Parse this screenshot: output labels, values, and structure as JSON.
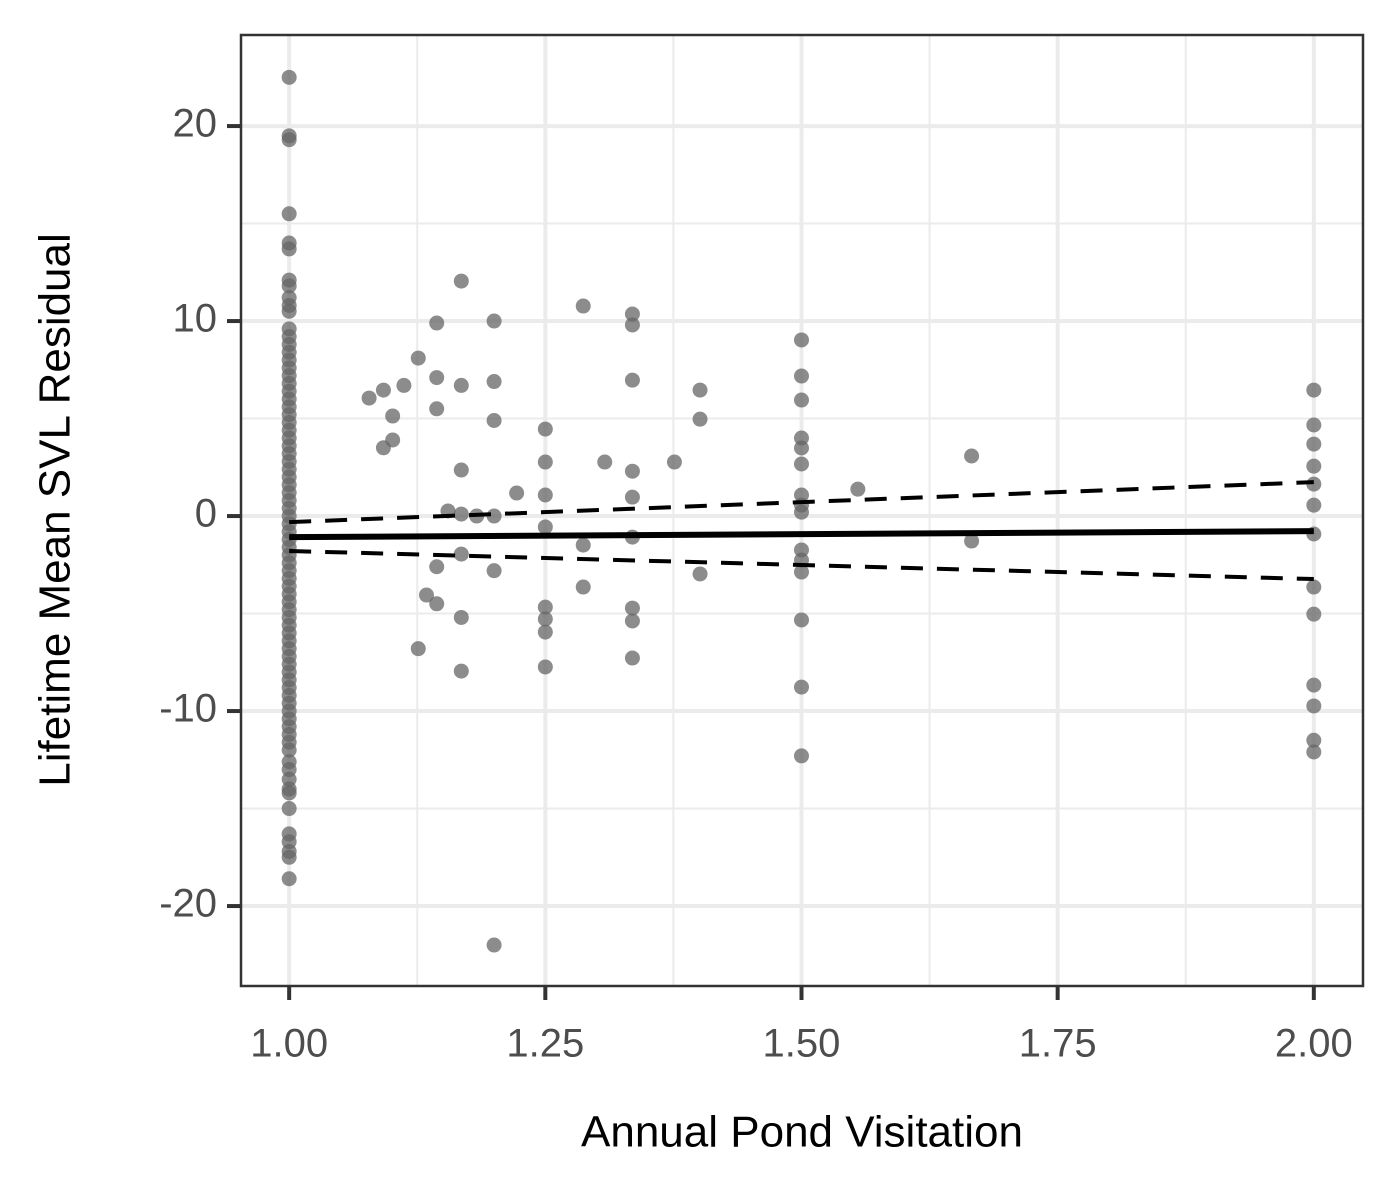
{
  "chart_data": {
    "type": "scatter",
    "x_label": "Annual Pond Visitation",
    "y_label": "Lifetime Mean SVL Residual",
    "xlim": [
      0.953,
      2.048
    ],
    "ylim": [
      -24.1,
      24.67
    ],
    "xticks": [
      {
        "value": 1,
        "label": "1.00"
      },
      {
        "value": 1.25,
        "label": "1.25"
      },
      {
        "value": 1.5,
        "label": "1.50"
      },
      {
        "value": 1.75,
        "label": "1.75"
      },
      {
        "value": 2,
        "label": "2.00"
      }
    ],
    "yticks": [
      -20,
      -10,
      0,
      10,
      20
    ],
    "x_minor_ticks": [
      1.125,
      1.375,
      1.625,
      1.875
    ],
    "y_minor_ticks": [
      -15,
      -5,
      5,
      15
    ],
    "grid": true,
    "point_color": "#666666",
    "groups": [
      {
        "x": 1,
        "values": [
          22.5,
          19.5,
          19.3,
          15.5,
          14,
          13.7,
          12.1,
          11.8,
          11.2,
          10.8,
          10.5,
          9.6,
          9.2,
          8.8,
          8.4,
          8.0,
          7.6,
          7.2,
          6.8,
          6.4,
          6.0,
          5.6,
          5.2,
          4.8,
          4.4,
          4.0,
          3.6,
          3.2,
          2.8,
          2.4,
          2.0,
          1.6,
          1.2,
          0.8,
          0.4,
          0,
          -0.4,
          -0.8,
          -1.2,
          -1.6,
          -2,
          -2.4,
          -2.8,
          -3.2,
          -3.6,
          -4,
          -4.4,
          -4.8,
          -5.2,
          -5.6,
          -6,
          -6.4,
          -6.8,
          -7.2,
          -7.6,
          -8,
          -8.4,
          -8.8,
          -9.2,
          -9.6,
          -10,
          -10.4,
          -10.8,
          -11.2,
          -11.6,
          -12,
          -12.6,
          -13,
          -13.5,
          -14,
          -14.2,
          -15,
          -16.3,
          -16.7,
          -17.2,
          -17.5,
          -18.6
        ]
      },
      {
        "x": 1.078,
        "values": [
          6.05
        ]
      },
      {
        "x": 1.092,
        "values": [
          6.46,
          3.5
        ]
      },
      {
        "x": 1.101,
        "values": [
          5.13,
          3.9
        ]
      },
      {
        "x": 1.112,
        "values": [
          6.7
        ]
      },
      {
        "x": 1.126,
        "values": [
          8.1,
          -6.8
        ]
      },
      {
        "x": 1.134,
        "values": [
          -4.05
        ]
      },
      {
        "x": 1.144,
        "values": [
          9.9,
          7.1,
          5.5,
          -2.6,
          -4.5
        ]
      },
      {
        "x": 1.155,
        "values": [
          0.26
        ]
      },
      {
        "x": 1.168,
        "values": [
          12.05,
          6.7,
          2.36,
          0.1,
          -1.95,
          -5.2,
          -7.95
        ]
      },
      {
        "x": 1.183,
        "values": [
          0
        ]
      },
      {
        "x": 1.2,
        "values": [
          10.0,
          6.9,
          4.9,
          0,
          -2.8,
          -22
        ]
      },
      {
        "x": 1.222,
        "values": [
          1.18
        ]
      },
      {
        "x": 1.25,
        "values": [
          4.46,
          2.77,
          1.08,
          -0.56,
          -4.67,
          -5.28,
          -5.95,
          -7.74
        ]
      },
      {
        "x": 1.287,
        "values": [
          10.77,
          -1.49,
          -3.64
        ]
      },
      {
        "x": 1.308,
        "values": [
          2.77
        ]
      },
      {
        "x": 1.335,
        "values": [
          10.36,
          9.8,
          6.97,
          2.3,
          0.97,
          -1.08,
          -4.72,
          -5.38,
          -7.28
        ]
      },
      {
        "x": 1.376,
        "values": [
          2.77
        ]
      },
      {
        "x": 1.401,
        "values": [
          6.46,
          4.97,
          -2.97
        ]
      },
      {
        "x": 1.5,
        "values": [
          9.03,
          7.18,
          5.95,
          4.0,
          3.49,
          2.67,
          1.08,
          0.56,
          0.2,
          -1.74,
          -2.26,
          -2.87,
          -5.33,
          -8.77,
          -12.3
        ]
      },
      {
        "x": 1.555,
        "values": [
          1.38
        ]
      },
      {
        "x": 1.666,
        "values": [
          3.08,
          -1.28
        ]
      },
      {
        "x": 2,
        "values": [
          6.46,
          4.67,
          3.69,
          2.56,
          1.64,
          0.56,
          -0.92,
          -3.64,
          -5.03,
          -8.67,
          -9.74,
          -11.5,
          -12.1
        ]
      }
    ],
    "lines": [
      {
        "x": [
          1,
          2
        ],
        "values": [
          -1.08,
          -0.77
        ],
        "color": "#000000",
        "dashed": false
      },
      {
        "x": [
          1,
          2
        ],
        "values": [
          -0.31,
          1.74
        ],
        "color": "#000000",
        "dashed": true
      },
      {
        "x": [
          1,
          2
        ],
        "values": [
          -1.79,
          -3.23
        ],
        "color": "#000000",
        "dashed": true
      }
    ]
  }
}
